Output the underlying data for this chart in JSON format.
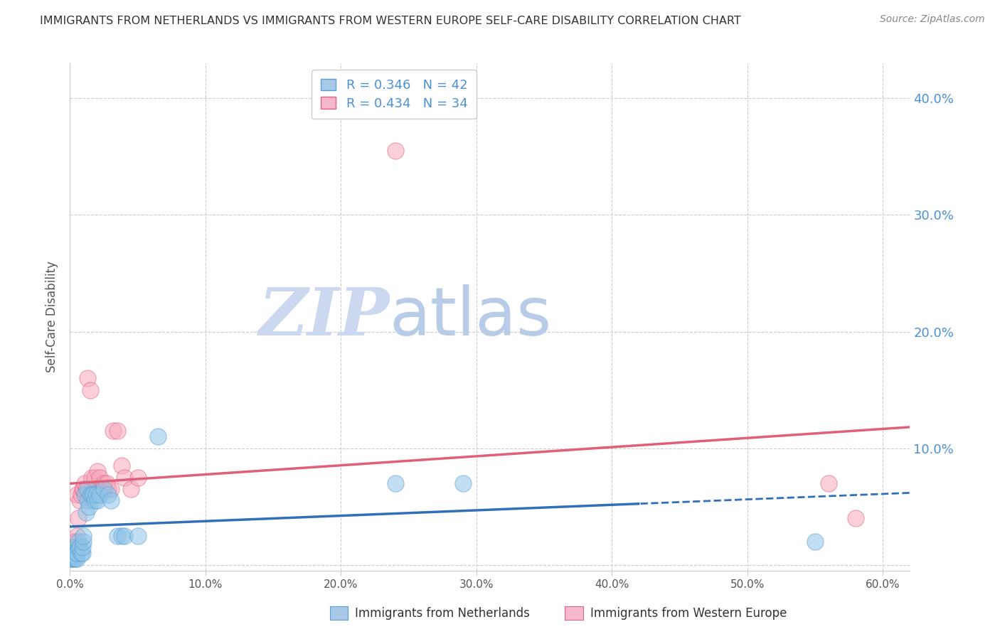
{
  "title": "IMMIGRANTS FROM NETHERLANDS VS IMMIGRANTS FROM WESTERN EUROPE SELF-CARE DISABILITY CORRELATION CHART",
  "source": "Source: ZipAtlas.com",
  "ylabel": "Self-Care Disability",
  "xlim": [
    0.0,
    0.62
  ],
  "ylim": [
    -0.005,
    0.43
  ],
  "xticks": [
    0.0,
    0.1,
    0.2,
    0.3,
    0.4,
    0.5,
    0.6
  ],
  "yticks": [
    0.0,
    0.1,
    0.2,
    0.3,
    0.4
  ],
  "xtick_labels": [
    "0.0%",
    "10.0%",
    "20.0%",
    "30.0%",
    "40.0%",
    "50.0%",
    "60.0%"
  ],
  "right_ytick_labels": [
    "40.0%",
    "30.0%",
    "20.0%",
    "10.0%"
  ],
  "right_ytick_positions": [
    0.4,
    0.3,
    0.2,
    0.1
  ],
  "series1_color": "#8fc4e8",
  "series1_edge": "#5a9fd4",
  "series2_color": "#f7a8bc",
  "series2_edge": "#e06080",
  "trend1_color": "#3070b8",
  "trend2_color": "#e0607a",
  "trend1_solid_end": 0.42,
  "watermark_zip": "ZIP",
  "watermark_atlas": "atlas",
  "watermark_color_zip": "#d0dff0",
  "watermark_color_atlas": "#c0d8f0",
  "background_color": "#ffffff",
  "grid_color": "#cccccc",
  "title_color": "#333333",
  "right_axis_color": "#4a90d9",
  "series1_name": "Immigrants from Netherlands",
  "series2_name": "Immigrants from Western Europe",
  "nl_x": [
    0.001,
    0.001,
    0.002,
    0.002,
    0.003,
    0.003,
    0.003,
    0.004,
    0.004,
    0.005,
    0.005,
    0.006,
    0.006,
    0.007,
    0.008,
    0.009,
    0.009,
    0.01,
    0.01,
    0.011,
    0.012,
    0.013,
    0.013,
    0.014,
    0.015,
    0.016,
    0.017,
    0.018,
    0.019,
    0.02,
    0.022,
    0.025,
    0.028,
    0.03,
    0.035,
    0.038,
    0.04,
    0.05,
    0.065,
    0.24,
    0.29,
    0.55
  ],
  "nl_y": [
    0.005,
    0.01,
    0.005,
    0.01,
    0.005,
    0.008,
    0.015,
    0.005,
    0.01,
    0.005,
    0.01,
    0.015,
    0.02,
    0.015,
    0.01,
    0.01,
    0.015,
    0.02,
    0.025,
    0.06,
    0.045,
    0.055,
    0.065,
    0.05,
    0.06,
    0.06,
    0.06,
    0.055,
    0.06,
    0.055,
    0.06,
    0.065,
    0.06,
    0.055,
    0.025,
    0.025,
    0.025,
    0.025,
    0.11,
    0.07,
    0.07,
    0.02
  ],
  "we_x": [
    0.001,
    0.001,
    0.002,
    0.003,
    0.004,
    0.005,
    0.005,
    0.006,
    0.007,
    0.008,
    0.009,
    0.01,
    0.011,
    0.012,
    0.013,
    0.015,
    0.016,
    0.018,
    0.02,
    0.022,
    0.024,
    0.025,
    0.027,
    0.028,
    0.03,
    0.032,
    0.035,
    0.038,
    0.04,
    0.045,
    0.05,
    0.24,
    0.56,
    0.58
  ],
  "we_y": [
    0.005,
    0.01,
    0.015,
    0.02,
    0.02,
    0.025,
    0.06,
    0.04,
    0.055,
    0.06,
    0.065,
    0.065,
    0.07,
    0.065,
    0.16,
    0.15,
    0.075,
    0.075,
    0.08,
    0.075,
    0.065,
    0.07,
    0.07,
    0.065,
    0.065,
    0.115,
    0.115,
    0.085,
    0.075,
    0.065,
    0.075,
    0.355,
    0.07,
    0.04
  ]
}
